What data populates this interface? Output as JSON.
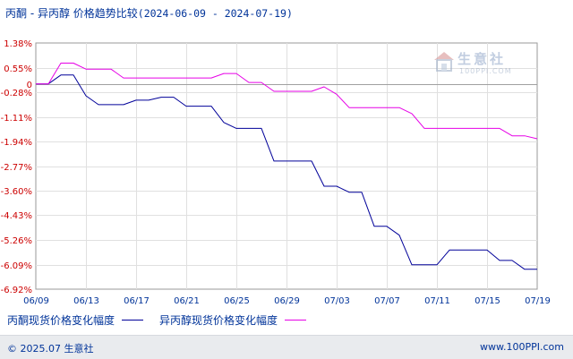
{
  "header": {
    "title": "丙酮 - 异丙醇 价格趋势比较",
    "date_range": "(2024-06-09 - 2024-07-19)"
  },
  "watermark": {
    "brand": "生意社",
    "site": "100PPI.COM"
  },
  "footer": {
    "copyright": "© 2025.07 生意社",
    "site": "www.100PPI.com"
  },
  "colors": {
    "series1": "#000099",
    "series2": "#e600e6",
    "axis_text": "#cc0000",
    "label_text": "#003399"
  },
  "chart_data": {
    "type": "line",
    "title": "丙酮 - 异丙醇 价格趋势比较",
    "date_range": [
      "2024-06-09",
      "2024-07-19"
    ],
    "ylim": [
      -6.92,
      1.38
    ],
    "y_ticks": [
      1.38,
      0.55,
      0,
      -0.28,
      -1.11,
      -1.94,
      -2.77,
      -3.6,
      -4.43,
      -5.26,
      -6.09,
      -6.92
    ],
    "y_tick_labels": [
      "1.38%",
      "0.55%",
      "0",
      "-0.28%",
      "-1.11%",
      "-1.94%",
      "-2.77%",
      "-3.60%",
      "-4.43%",
      "-5.26%",
      "-6.09%",
      "-6.92%"
    ],
    "x_tick_dates": [
      "2024-06-09",
      "2024-06-13",
      "2024-06-17",
      "2024-06-21",
      "2024-06-25",
      "2024-06-29",
      "2024-07-03",
      "2024-07-07",
      "2024-07-11",
      "2024-07-15",
      "2024-07-19"
    ],
    "x_tick_labels": [
      "06/09",
      "06/13",
      "06/17",
      "06/21",
      "06/25",
      "06/29",
      "07/03",
      "07/07",
      "07/11",
      "07/15",
      "07/19"
    ],
    "grid": true,
    "legend_position": "bottom-left",
    "series": [
      {
        "name": "丙酮现货价格变化幅度",
        "color": "#000099",
        "points": [
          [
            "2024-06-09",
            0
          ],
          [
            "2024-06-10",
            0
          ],
          [
            "2024-06-11",
            0.3
          ],
          [
            "2024-06-12",
            0.3
          ],
          [
            "2024-06-13",
            -0.4
          ],
          [
            "2024-06-14",
            -0.7
          ],
          [
            "2024-06-15",
            -0.7
          ],
          [
            "2024-06-16",
            -0.7
          ],
          [
            "2024-06-17",
            -0.55
          ],
          [
            "2024-06-18",
            -0.55
          ],
          [
            "2024-06-19",
            -0.45
          ],
          [
            "2024-06-20",
            -0.45
          ],
          [
            "2024-06-21",
            -0.75
          ],
          [
            "2024-06-22",
            -0.75
          ],
          [
            "2024-06-23",
            -0.75
          ],
          [
            "2024-06-24",
            -1.3
          ],
          [
            "2024-06-25",
            -1.5
          ],
          [
            "2024-06-26",
            -1.5
          ],
          [
            "2024-06-27",
            -1.5
          ],
          [
            "2024-06-28",
            -2.6
          ],
          [
            "2024-06-29",
            -2.6
          ],
          [
            "2024-06-30",
            -2.6
          ],
          [
            "2024-07-01",
            -2.6
          ],
          [
            "2024-07-02",
            -3.45
          ],
          [
            "2024-07-03",
            -3.45
          ],
          [
            "2024-07-04",
            -3.65
          ],
          [
            "2024-07-05",
            -3.65
          ],
          [
            "2024-07-06",
            -4.8
          ],
          [
            "2024-07-07",
            -4.8
          ],
          [
            "2024-07-08",
            -5.1
          ],
          [
            "2024-07-09",
            -6.1
          ],
          [
            "2024-07-10",
            -6.1
          ],
          [
            "2024-07-11",
            -6.1
          ],
          [
            "2024-07-12",
            -5.6
          ],
          [
            "2024-07-13",
            -5.6
          ],
          [
            "2024-07-14",
            -5.6
          ],
          [
            "2024-07-15",
            -5.6
          ],
          [
            "2024-07-16",
            -5.95
          ],
          [
            "2024-07-17",
            -5.95
          ],
          [
            "2024-07-18",
            -6.25
          ],
          [
            "2024-07-19",
            -6.25
          ]
        ]
      },
      {
        "name": "异丙醇现货价格变化幅度",
        "color": "#e600e6",
        "points": [
          [
            "2024-06-09",
            0
          ],
          [
            "2024-06-10",
            0
          ],
          [
            "2024-06-11",
            0.7
          ],
          [
            "2024-06-12",
            0.7
          ],
          [
            "2024-06-13",
            0.5
          ],
          [
            "2024-06-14",
            0.5
          ],
          [
            "2024-06-15",
            0.5
          ],
          [
            "2024-06-16",
            0.2
          ],
          [
            "2024-06-17",
            0.2
          ],
          [
            "2024-06-18",
            0.2
          ],
          [
            "2024-06-19",
            0.2
          ],
          [
            "2024-06-20",
            0.2
          ],
          [
            "2024-06-21",
            0.2
          ],
          [
            "2024-06-22",
            0.2
          ],
          [
            "2024-06-23",
            0.2
          ],
          [
            "2024-06-24",
            0.35
          ],
          [
            "2024-06-25",
            0.35
          ],
          [
            "2024-06-26",
            0.05
          ],
          [
            "2024-06-27",
            0.05
          ],
          [
            "2024-06-28",
            -0.25
          ],
          [
            "2024-06-29",
            -0.25
          ],
          [
            "2024-06-30",
            -0.25
          ],
          [
            "2024-07-01",
            -0.25
          ],
          [
            "2024-07-02",
            -0.1
          ],
          [
            "2024-07-03",
            -0.35
          ],
          [
            "2024-07-04",
            -0.8
          ],
          [
            "2024-07-05",
            -0.8
          ],
          [
            "2024-07-06",
            -0.8
          ],
          [
            "2024-07-07",
            -0.8
          ],
          [
            "2024-07-08",
            -0.8
          ],
          [
            "2024-07-09",
            -1.0
          ],
          [
            "2024-07-10",
            -1.5
          ],
          [
            "2024-07-11",
            -1.5
          ],
          [
            "2024-07-12",
            -1.5
          ],
          [
            "2024-07-13",
            -1.5
          ],
          [
            "2024-07-14",
            -1.5
          ],
          [
            "2024-07-15",
            -1.5
          ],
          [
            "2024-07-16",
            -1.5
          ],
          [
            "2024-07-17",
            -1.75
          ],
          [
            "2024-07-18",
            -1.75
          ],
          [
            "2024-07-19",
            -1.85
          ]
        ]
      }
    ]
  }
}
